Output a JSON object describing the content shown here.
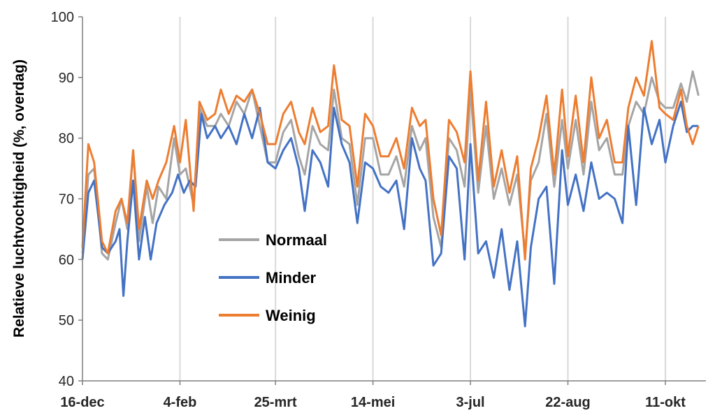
{
  "chart_data": {
    "type": "line",
    "title": "",
    "ylabel": "Relatieve luchtvochtigheid (%, overdag)",
    "xlabel": "",
    "x_axis": {
      "type": "date",
      "start": "16-dec",
      "end": "30-okt"
    },
    "x_ticks": [
      "16-dec",
      "4-feb",
      "25-mrt",
      "14-mei",
      "3-jul",
      "22-aug",
      "11-okt"
    ],
    "y_ticks": [
      40,
      50,
      60,
      70,
      80,
      90,
      100
    ],
    "ylim": [
      40,
      100
    ],
    "grid": "vertical",
    "legend": "inside-left",
    "series": [
      {
        "name": "Normaal",
        "color": "#a5a5a5",
        "points": [
          [
            "16-dec",
            61
          ],
          [
            "19-dec",
            74
          ],
          [
            "22-dec",
            75
          ],
          [
            "26-dec",
            61
          ],
          [
            "29-dec",
            60
          ],
          [
            "2-jan",
            66
          ],
          [
            "5-jan",
            70
          ],
          [
            "8-jan",
            65
          ],
          [
            "11-jan",
            78
          ],
          [
            "14-jan",
            63
          ],
          [
            "18-jan",
            72
          ],
          [
            "21-jan",
            66
          ],
          [
            "24-jan",
            72
          ],
          [
            "28-jan",
            70
          ],
          [
            "1-feb",
            80
          ],
          [
            "4-feb",
            74
          ],
          [
            "7-feb",
            75
          ],
          [
            "11-feb",
            69
          ],
          [
            "14-feb",
            85
          ],
          [
            "18-feb",
            82
          ],
          [
            "22-feb",
            82
          ],
          [
            "25-feb",
            84
          ],
          [
            "1-mrt",
            82
          ],
          [
            "5-mrt",
            86
          ],
          [
            "9-mrt",
            84
          ],
          [
            "13-mrt",
            88
          ],
          [
            "17-mrt",
            82
          ],
          [
            "21-mrt",
            76
          ],
          [
            "25-mrt",
            76
          ],
          [
            "29-mrt",
            81
          ],
          [
            "2-apr",
            83
          ],
          [
            "6-apr",
            77
          ],
          [
            "9-apr",
            74
          ],
          [
            "13-apr",
            82
          ],
          [
            "17-apr",
            79
          ],
          [
            "21-apr",
            78
          ],
          [
            "24-apr",
            88
          ],
          [
            "28-apr",
            80
          ],
          [
            "2-mei",
            79
          ],
          [
            "6-mei",
            69
          ],
          [
            "10-mei",
            80
          ],
          [
            "14-mei",
            80
          ],
          [
            "18-mei",
            74
          ],
          [
            "22-mei",
            74
          ],
          [
            "26-mei",
            77
          ],
          [
            "30-mei",
            72
          ],
          [
            "3-jun",
            82
          ],
          [
            "7-jun",
            78
          ],
          [
            "10-jun",
            80
          ],
          [
            "14-jun",
            67
          ],
          [
            "18-jun",
            62
          ],
          [
            "22-jun",
            80
          ],
          [
            "26-jun",
            78
          ],
          [
            "30-jun",
            72
          ],
          [
            "3-jul",
            88
          ],
          [
            "7-jul",
            71
          ],
          [
            "11-jul",
            82
          ],
          [
            "15-jul",
            70
          ],
          [
            "19-jul",
            75
          ],
          [
            "23-jul",
            69
          ],
          [
            "27-jul",
            74
          ],
          [
            "31-jul",
            61
          ],
          [
            "3-aug",
            73
          ],
          [
            "7-aug",
            76
          ],
          [
            "11-aug",
            84
          ],
          [
            "15-aug",
            72
          ],
          [
            "19-aug",
            83
          ],
          [
            "22-aug",
            75
          ],
          [
            "26-aug",
            83
          ],
          [
            "30-aug",
            74
          ],
          [
            "3-sep",
            86
          ],
          [
            "7-sep",
            78
          ],
          [
            "11-sep",
            80
          ],
          [
            "15-sep",
            74
          ],
          [
            "19-sep",
            74
          ],
          [
            "22-sep",
            82
          ],
          [
            "26-sep",
            86
          ],
          [
            "30-sep",
            84
          ],
          [
            "4-okt",
            90
          ],
          [
            "8-okt",
            86
          ],
          [
            "11-okt",
            85
          ],
          [
            "15-okt",
            85
          ],
          [
            "19-okt",
            89
          ],
          [
            "22-okt",
            86
          ],
          [
            "25-okt",
            91
          ],
          [
            "28-okt",
            87
          ]
        ]
      },
      {
        "name": "Minder",
        "color": "#4472c4",
        "points": [
          [
            "16-dec",
            60
          ],
          [
            "19-dec",
            71
          ],
          [
            "22-dec",
            73
          ],
          [
            "26-dec",
            62
          ],
          [
            "29-dec",
            61
          ],
          [
            "2-jan",
            63
          ],
          [
            "4-jan",
            65
          ],
          [
            "6-jan",
            54
          ],
          [
            "8-jan",
            63
          ],
          [
            "11-jan",
            73
          ],
          [
            "14-jan",
            60
          ],
          [
            "17-jan",
            67
          ],
          [
            "20-jan",
            60
          ],
          [
            "23-jan",
            66
          ],
          [
            "27-jan",
            69
          ],
          [
            "31-jan",
            71
          ],
          [
            "3-feb",
            74
          ],
          [
            "6-feb",
            71
          ],
          [
            "9-feb",
            73
          ],
          [
            "12-feb",
            72
          ],
          [
            "15-feb",
            84
          ],
          [
            "18-feb",
            80
          ],
          [
            "22-feb",
            82
          ],
          [
            "25-feb",
            80
          ],
          [
            "1-mrt",
            82
          ],
          [
            "5-mrt",
            79
          ],
          [
            "9-mrt",
            84
          ],
          [
            "13-mrt",
            80
          ],
          [
            "17-mrt",
            85
          ],
          [
            "21-mrt",
            76
          ],
          [
            "25-mrt",
            75
          ],
          [
            "29-mrt",
            78
          ],
          [
            "2-apr",
            80
          ],
          [
            "6-apr",
            75
          ],
          [
            "9-apr",
            68
          ],
          [
            "13-apr",
            78
          ],
          [
            "17-apr",
            76
          ],
          [
            "21-apr",
            72
          ],
          [
            "24-apr",
            85
          ],
          [
            "28-apr",
            79
          ],
          [
            "2-mei",
            76
          ],
          [
            "6-mei",
            66
          ],
          [
            "10-mei",
            76
          ],
          [
            "14-mei",
            75
          ],
          [
            "18-mei",
            72
          ],
          [
            "22-mei",
            71
          ],
          [
            "26-mei",
            73
          ],
          [
            "30-mei",
            65
          ],
          [
            "3-jun",
            80
          ],
          [
            "7-jun",
            75
          ],
          [
            "10-jun",
            73
          ],
          [
            "14-jun",
            59
          ],
          [
            "18-jun",
            61
          ],
          [
            "22-jun",
            77
          ],
          [
            "26-jun",
            75
          ],
          [
            "30-jun",
            60
          ],
          [
            "3-jul",
            79
          ],
          [
            "7-jul",
            61
          ],
          [
            "11-jul",
            63
          ],
          [
            "15-jul",
            57
          ],
          [
            "19-jul",
            65
          ],
          [
            "23-jul",
            55
          ],
          [
            "27-jul",
            63
          ],
          [
            "31-jul",
            49
          ],
          [
            "3-aug",
            62
          ],
          [
            "7-aug",
            70
          ],
          [
            "11-aug",
            72
          ],
          [
            "15-aug",
            56
          ],
          [
            "19-aug",
            78
          ],
          [
            "22-aug",
            69
          ],
          [
            "26-aug",
            74
          ],
          [
            "30-aug",
            68
          ],
          [
            "3-sep",
            76
          ],
          [
            "7-sep",
            70
          ],
          [
            "11-sep",
            71
          ],
          [
            "15-sep",
            70
          ],
          [
            "19-sep",
            66
          ],
          [
            "22-sep",
            82
          ],
          [
            "26-sep",
            69
          ],
          [
            "30-sep",
            85
          ],
          [
            "4-okt",
            79
          ],
          [
            "8-okt",
            83
          ],
          [
            "11-okt",
            76
          ],
          [
            "15-okt",
            82
          ],
          [
            "19-okt",
            86
          ],
          [
            "22-okt",
            81
          ],
          [
            "25-okt",
            82
          ],
          [
            "28-okt",
            82
          ]
        ]
      },
      {
        "name": "Weinig",
        "color": "#ed7d31",
        "points": [
          [
            "16-dec",
            62
          ],
          [
            "19-dec",
            79
          ],
          [
            "22-dec",
            76
          ],
          [
            "26-dec",
            63
          ],
          [
            "29-dec",
            61
          ],
          [
            "2-jan",
            68
          ],
          [
            "5-jan",
            70
          ],
          [
            "8-jan",
            66
          ],
          [
            "11-jan",
            78
          ],
          [
            "14-jan",
            65
          ],
          [
            "18-jan",
            73
          ],
          [
            "21-jan",
            70
          ],
          [
            "24-jan",
            73
          ],
          [
            "28-jan",
            76
          ],
          [
            "1-feb",
            82
          ],
          [
            "4-feb",
            76
          ],
          [
            "7-feb",
            83
          ],
          [
            "11-feb",
            68
          ],
          [
            "14-feb",
            86
          ],
          [
            "18-feb",
            83
          ],
          [
            "22-feb",
            84
          ],
          [
            "25-feb",
            88
          ],
          [
            "1-mrt",
            84
          ],
          [
            "5-mrt",
            87
          ],
          [
            "9-mrt",
            86
          ],
          [
            "13-mrt",
            88
          ],
          [
            "17-mrt",
            84
          ],
          [
            "21-mrt",
            79
          ],
          [
            "25-mrt",
            79
          ],
          [
            "29-mrt",
            84
          ],
          [
            "2-apr",
            86
          ],
          [
            "6-apr",
            81
          ],
          [
            "9-apr",
            79
          ],
          [
            "13-apr",
            85
          ],
          [
            "17-apr",
            81
          ],
          [
            "21-apr",
            82
          ],
          [
            "24-apr",
            92
          ],
          [
            "28-apr",
            83
          ],
          [
            "2-mei",
            82
          ],
          [
            "6-mei",
            72
          ],
          [
            "10-mei",
            84
          ],
          [
            "14-mei",
            82
          ],
          [
            "18-mei",
            77
          ],
          [
            "22-mei",
            77
          ],
          [
            "26-mei",
            80
          ],
          [
            "30-mei",
            75
          ],
          [
            "3-jun",
            85
          ],
          [
            "7-jun",
            82
          ],
          [
            "10-jun",
            83
          ],
          [
            "14-jun",
            70
          ],
          [
            "18-jun",
            64
          ],
          [
            "22-jun",
            83
          ],
          [
            "26-jun",
            81
          ],
          [
            "30-jun",
            76
          ],
          [
            "3-jul",
            91
          ],
          [
            "7-jul",
            73
          ],
          [
            "11-jul",
            86
          ],
          [
            "15-jul",
            72
          ],
          [
            "19-jul",
            78
          ],
          [
            "23-jul",
            71
          ],
          [
            "27-jul",
            77
          ],
          [
            "31-jul",
            60
          ],
          [
            "3-aug",
            75
          ],
          [
            "7-aug",
            80
          ],
          [
            "11-aug",
            87
          ],
          [
            "15-aug",
            74
          ],
          [
            "19-aug",
            88
          ],
          [
            "22-aug",
            77
          ],
          [
            "26-aug",
            87
          ],
          [
            "30-aug",
            76
          ],
          [
            "3-sep",
            90
          ],
          [
            "7-sep",
            80
          ],
          [
            "11-sep",
            83
          ],
          [
            "15-sep",
            76
          ],
          [
            "19-sep",
            76
          ],
          [
            "22-sep",
            85
          ],
          [
            "26-sep",
            90
          ],
          [
            "30-sep",
            87
          ],
          [
            "4-okt",
            96
          ],
          [
            "8-okt",
            85
          ],
          [
            "11-okt",
            84
          ],
          [
            "15-okt",
            83
          ],
          [
            "19-okt",
            88
          ],
          [
            "22-okt",
            82
          ],
          [
            "25-okt",
            79
          ],
          [
            "28-okt",
            82
          ]
        ]
      }
    ]
  }
}
